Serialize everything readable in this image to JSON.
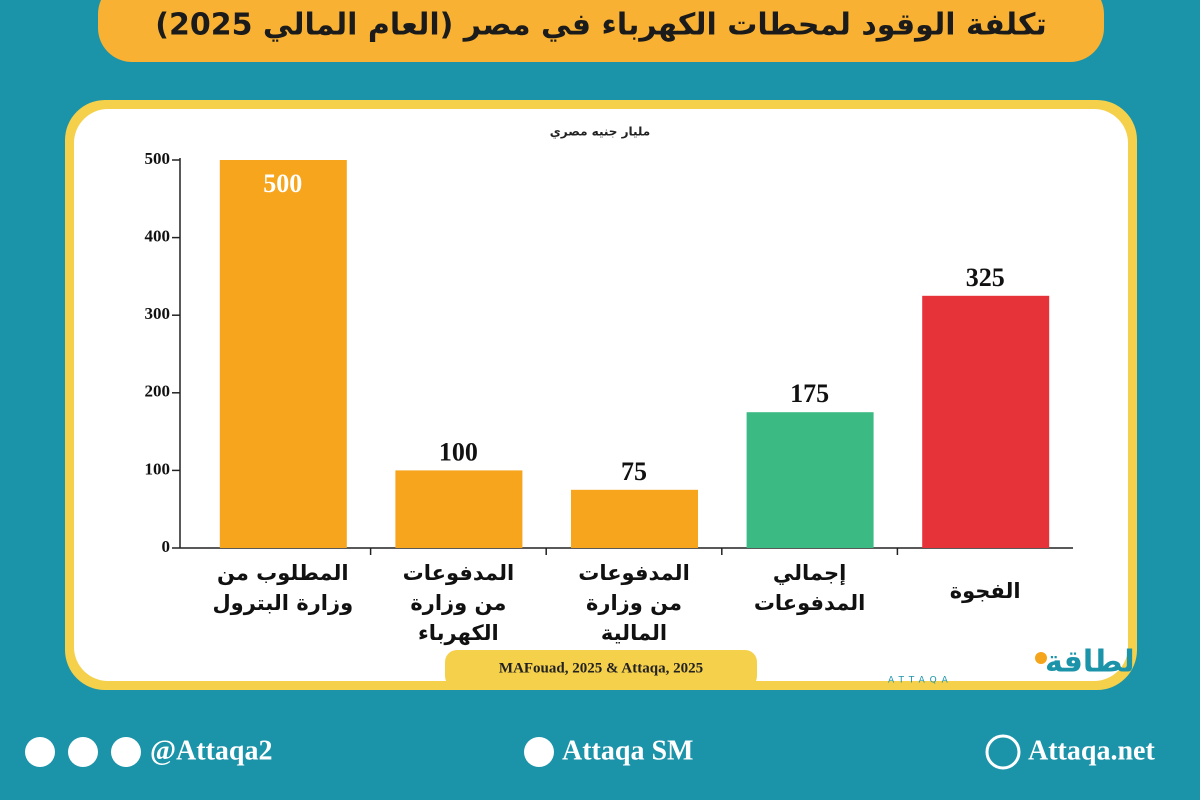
{
  "chart_data": {
    "type": "bar",
    "title": "تكلفة الوقود لمحطات الكهرباء في مصر (العام المالي 2025)",
    "y_label": "مليار جنيه مصري",
    "categories": [
      "المطلوب من وزارة البترول",
      "المدفوعات من وزارة الكهرباء",
      "المدفوعات من وزارة المالية",
      "إجمالي المدفوعات",
      "الفجوة"
    ],
    "values": [
      500,
      100,
      75,
      175,
      325
    ],
    "colors": [
      "#f7a51c",
      "#f7a51c",
      "#f7a51c",
      "#3cba84",
      "#e63339"
    ],
    "ylim": [
      0,
      500
    ],
    "yticks": [
      0,
      100,
      200,
      300,
      400,
      500
    ],
    "source": "MAFouad, 2025 & Attaqa, 2025"
  },
  "logo": {
    "name": "الطاقة",
    "latin": "ATTAQA"
  },
  "footer": {
    "social": "@Attaqa2",
    "youtube": "Attaqa SM",
    "website": "Attaqa.net"
  }
}
